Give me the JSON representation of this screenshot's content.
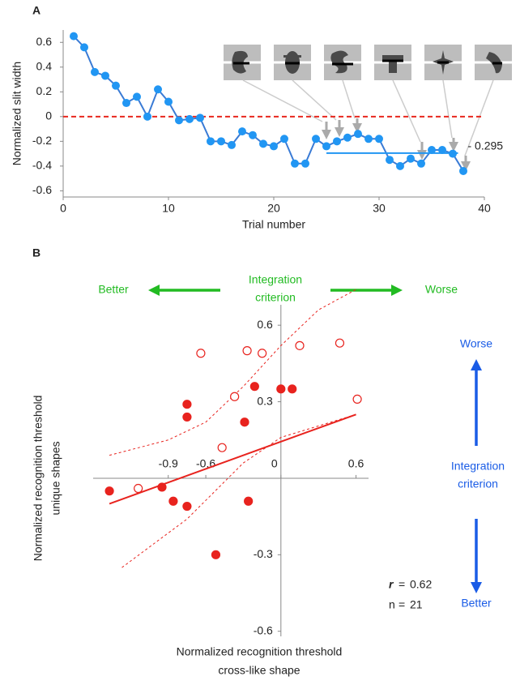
{
  "chart_data": [
    {
      "type": "line",
      "panel": "A",
      "ylabel": "Normalized slit width",
      "xlabel": "Trial number",
      "x": [
        1,
        2,
        3,
        4,
        5,
        6,
        7,
        8,
        9,
        10,
        11,
        12,
        13,
        14,
        15,
        16,
        17,
        18,
        19,
        20,
        21,
        22,
        23,
        24,
        25,
        26,
        27,
        28,
        29,
        30,
        31,
        32,
        33,
        34,
        35,
        36,
        37,
        38
      ],
      "series": [
        {
          "color": "#2196f3",
          "line_color": "#3a7bd5",
          "values": [
            0.65,
            0.56,
            0.36,
            0.33,
            0.25,
            0.11,
            0.16,
            0,
            0.22,
            0.12,
            -0.03,
            -0.02,
            -0.01,
            -0.2,
            -0.2,
            -0.23,
            -0.12,
            -0.15,
            -0.22,
            -0.24,
            -0.18,
            -0.38,
            -0.38,
            -0.18,
            -0.24,
            -0.2,
            -0.17,
            -0.14,
            -0.18,
            -0.18,
            -0.35,
            -0.4,
            -0.34,
            -0.38,
            -0.27,
            -0.27,
            -0.3,
            -0.44
          ]
        }
      ],
      "xlim": [
        0,
        40
      ],
      "xticks": [
        0,
        10,
        20,
        30,
        40
      ],
      "ylim": [
        -0.65,
        0.7
      ],
      "yticks": [
        -0.6,
        -0.4,
        -0.2,
        0,
        0.2,
        0.4,
        0.6
      ],
      "hline": {
        "value": 0,
        "color": "#e8281e"
      },
      "ref_line": {
        "value": -0.295,
        "label": "- 0.295",
        "x": [
          25,
          37.5
        ],
        "color": "#2196f3"
      }
    },
    {
      "type": "scatter",
      "panel": "B",
      "xlabel": "Normalized recognition threshold",
      "xlabel_sub": "cross-like shape",
      "ylabel": "Normalized  recognition threshold",
      "ylabel_sub": "unique shapes",
      "series": [
        {
          "fill": "filled",
          "color": "#e8231e",
          "x": [
            -1.37,
            -0.95,
            -0.86,
            -0.75,
            -0.75,
            -0.75,
            -0.52,
            -0.29,
            -0.26,
            -0.21,
            0,
            0.09
          ],
          "values": [
            -0.05,
            -0.035,
            -0.09,
            0.29,
            0.24,
            -0.11,
            -0.3,
            0.22,
            -0.09,
            0.36,
            0.35,
            0.35
          ]
        },
        {
          "fill": "open",
          "color": "#e8231e",
          "x": [
            -1.14,
            -0.64,
            -0.47,
            -0.37,
            -0.27,
            -0.15,
            0.15,
            0.47,
            0.61
          ],
          "values": [
            -0.04,
            0.49,
            0.12,
            0.32,
            0.5,
            0.49,
            0.52,
            0.53,
            0.31
          ]
        }
      ],
      "fit": {
        "color": "#e8231e",
        "x": [
          -1.37,
          0.6
        ],
        "y": [
          -0.1,
          0.25
        ]
      },
      "ci": [
        {
          "x": [
            -1.37,
            -0.9,
            -0.6,
            -0.3,
            0,
            0.3,
            0.6
          ],
          "y": [
            0.09,
            0.15,
            0.22,
            0.36,
            0.52,
            0.66,
            0.74
          ]
        },
        {
          "x": [
            -1.27,
            -0.75,
            -0.3,
            0,
            0.6
          ],
          "y": [
            -0.35,
            -0.16,
            0.06,
            0.16,
            0.25
          ]
        }
      ],
      "xlim": [
        -1.5,
        0.7
      ],
      "xticks": [
        -0.9,
        -0.6,
        0,
        0.6
      ],
      "ylim": [
        -0.62,
        0.68
      ],
      "yticks": [
        -0.6,
        -0.3,
        0.3,
        0.6
      ],
      "stats": [
        {
          "symbol": "r",
          "sign": "=",
          "value": 0.62
        },
        {
          "symbol": "n",
          "sign": "=",
          "value": 21
        }
      ],
      "top_axis": {
        "left": "Better",
        "center": [
          "Integration",
          "criterion"
        ],
        "right": "Worse",
        "color": "#22bb22"
      },
      "side_axis": {
        "top": "Worse",
        "center": [
          "Integration",
          "criterion"
        ],
        "bottom": "Better",
        "color": "#1a5ce6"
      }
    }
  ]
}
